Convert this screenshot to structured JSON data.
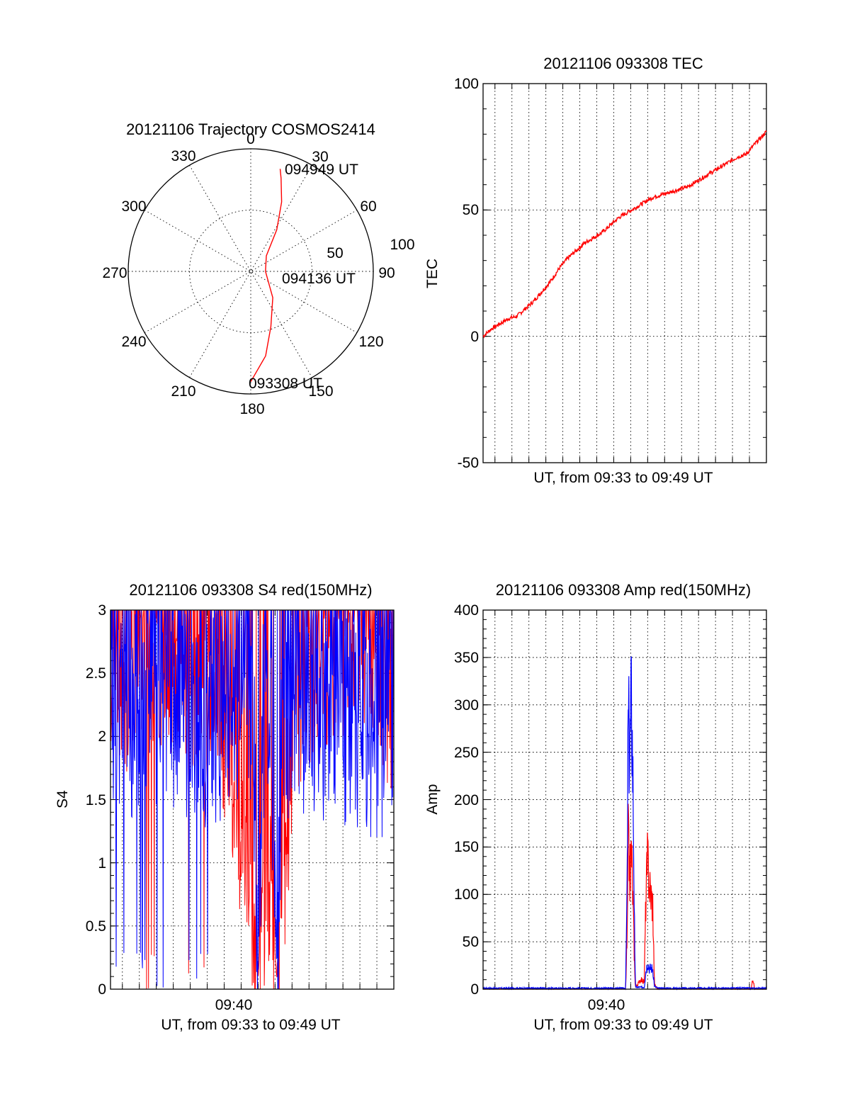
{
  "colors": {
    "red_series": "#ff0000",
    "blue_series": "#0000ff",
    "axes": "#000000",
    "background": "#ffffff"
  },
  "chart_data": [
    {
      "type": "polar",
      "title": "20121106 Trajectory COSMOS2414",
      "angle_labels": [
        "0",
        "30",
        "60",
        "90",
        "120",
        "150",
        "180",
        "210",
        "240",
        "270",
        "300",
        "330"
      ],
      "radial_labels": [
        "50",
        "100"
      ],
      "radial_unit_meaning": "zenith angle",
      "series": [
        {
          "color": "red",
          "points_az_r": [
            [
              180,
              90
            ],
            [
              170,
              70
            ],
            [
              160,
              48
            ],
            [
              140,
              28
            ],
            [
              90,
              12
            ],
            [
              45,
              18
            ],
            [
              32,
              40
            ],
            [
              24,
              62
            ],
            [
              18,
              80
            ],
            [
              16,
              87
            ]
          ]
        }
      ],
      "annotations": [
        "094949 UT",
        "094136 UT",
        "093308 UT"
      ]
    },
    {
      "type": "line",
      "title": "20121106 093308 TEC",
      "xlabel": "UT, from 09:33 to 09:49 UT",
      "ylabel": "TEC",
      "xlim_minutes": [
        0,
        16.7
      ],
      "ylim": [
        -50,
        100
      ],
      "yticks": [
        "-50",
        "0",
        "50",
        "100"
      ],
      "series": [
        {
          "color": "red",
          "x_minutes": [
            0,
            0.5,
            1,
            1.5,
            2,
            2.5,
            3,
            3.5,
            4,
            4.5,
            5,
            5.5,
            6,
            6.5,
            7,
            7.5,
            8,
            8.5,
            9,
            9.5,
            10,
            10.5,
            11,
            11.5,
            12,
            12.5,
            13,
            13.5,
            14,
            14.5,
            15,
            15.5,
            16,
            16.7
          ],
          "y": [
            0,
            3,
            5,
            7,
            8,
            11,
            14,
            18,
            22,
            27,
            31,
            34,
            37,
            39,
            41,
            44,
            47,
            49,
            51,
            53,
            55,
            56,
            57,
            58,
            59,
            61,
            63,
            65,
            67,
            69,
            71,
            72,
            76,
            81
          ]
        }
      ]
    },
    {
      "type": "line",
      "title": "20121106 093308 S4 red(150MHz)",
      "xlabel": "UT, from 09:33 to 09:49 UT",
      "ylabel": "S4",
      "xlim_minutes": [
        0,
        16.7
      ],
      "xticks": [
        {
          "label": "09:40",
          "minute": 7.2
        }
      ],
      "ylim": [
        0,
        3
      ],
      "yticks": [
        "0",
        "0.5",
        "1",
        "1.5",
        "2",
        "2.5",
        "3"
      ],
      "series": [
        {
          "color": "red",
          "x_minutes": [
            0,
            1,
            2,
            3,
            4,
            5,
            6,
            6.8,
            7.5,
            8,
            8.4,
            8.7,
            9,
            9.5,
            9.8,
            10.2,
            10.6,
            11,
            11.5,
            12,
            13,
            14,
            15,
            16,
            16.7
          ],
          "y": [
            2.6,
            2.5,
            2.8,
            2.7,
            2.6,
            2.5,
            2.4,
            2.0,
            1.5,
            1.1,
            0.7,
            0.1,
            0.8,
            0.6,
            0.1,
            1.0,
            1.7,
            2.2,
            2.3,
            2.5,
            2.7,
            2.8,
            2.9,
            2.5,
            2.3
          ]
        },
        {
          "color": "blue",
          "x_minutes": [
            0,
            1,
            2,
            3,
            4,
            5,
            6,
            6.8,
            7.5,
            8,
            8.4,
            8.7,
            9,
            9.5,
            9.8,
            10.2,
            10.6,
            11,
            11.5,
            12,
            13,
            14,
            15,
            16,
            16.7
          ],
          "y": [
            2.3,
            2.2,
            2.4,
            2.2,
            2.3,
            2.2,
            2.1,
            2.3,
            2.4,
            2.5,
            2.3,
            0.12,
            2.2,
            2.1,
            0.22,
            2.3,
            2.2,
            2.2,
            2.1,
            2.3,
            2.1,
            2.2,
            2.0,
            2.1,
            2.2
          ]
        }
      ]
    },
    {
      "type": "line",
      "title": "20121106 093308 Amp red(150MHz)",
      "xlabel": "UT, from 09:33 to 09:49 UT",
      "ylabel": "Amp",
      "xlim_minutes": [
        0,
        16.7
      ],
      "xticks": [
        {
          "label": "09:40",
          "minute": 7.2
        }
      ],
      "ylim": [
        0,
        400
      ],
      "yticks": [
        "0",
        "50",
        "100",
        "150",
        "200",
        "250",
        "300",
        "350",
        "400"
      ],
      "series": [
        {
          "color": "red",
          "x_minutes": [
            0,
            8.4,
            8.5,
            8.55,
            8.65,
            8.75,
            8.85,
            8.95,
            9.0,
            9.1,
            9.3,
            9.5,
            9.6,
            9.7,
            9.8,
            10.0,
            10.1,
            10.3,
            15.8,
            15.9,
            16.0,
            16.7
          ],
          "y": [
            0,
            0,
            60,
            160,
            120,
            150,
            80,
            10,
            2,
            5,
            10,
            8,
            100,
            140,
            110,
            90,
            5,
            0,
            0,
            12,
            0,
            0
          ]
        },
        {
          "color": "blue",
          "x_minutes": [
            0,
            8.4,
            8.5,
            8.55,
            8.65,
            8.75,
            8.85,
            8.95,
            9.0,
            9.1,
            9.3,
            9.5,
            9.6,
            9.7,
            9.8,
            10.0,
            10.1,
            10.3,
            16.7
          ],
          "y": [
            1,
            1,
            120,
            280,
            250,
            305,
            200,
            20,
            2,
            2,
            2,
            2,
            20,
            28,
            22,
            22,
            3,
            1,
            1
          ]
        }
      ]
    }
  ]
}
